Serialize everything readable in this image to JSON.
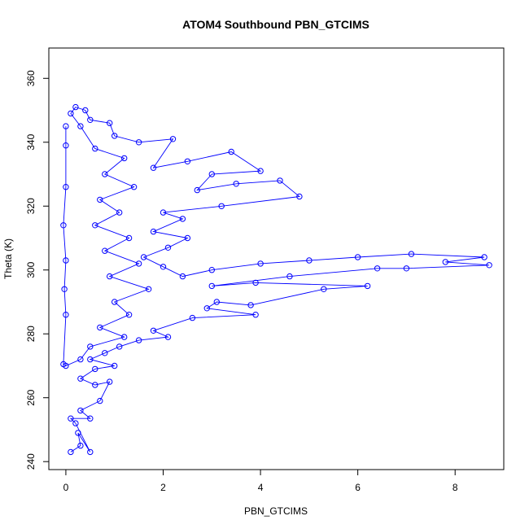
{
  "chart_data": {
    "type": "scatter",
    "title": "ATOM4 Southbound PBN_GTCIMS",
    "xlabel": "PBN_GTCIMS",
    "ylabel": "Theta (K)",
    "xlim": [
      -0.35,
      9.0
    ],
    "ylim": [
      237.5,
      369.5
    ],
    "xticks": [
      0,
      2,
      4,
      6,
      8
    ],
    "yticks": [
      240,
      260,
      280,
      300,
      320,
      340,
      360
    ],
    "grid": false,
    "color": "#0000ff",
    "marker": "open-circle",
    "connected": true,
    "series": [
      {
        "points": [
          [
            0.1,
            243
          ],
          [
            0.3,
            245
          ],
          [
            0.25,
            249
          ],
          [
            0.5,
            243
          ],
          [
            0.2,
            252
          ],
          [
            0.1,
            253.5
          ],
          [
            0.5,
            253.5
          ],
          [
            0.3,
            256
          ],
          [
            0.7,
            259
          ],
          [
            0.9,
            265
          ],
          [
            0.6,
            264
          ],
          [
            0.3,
            266
          ],
          [
            0.6,
            269
          ],
          [
            1.0,
            270
          ],
          [
            0.5,
            272
          ],
          [
            0.8,
            274
          ],
          [
            1.1,
            276
          ],
          [
            1.5,
            278
          ],
          [
            2.1,
            279
          ],
          [
            1.8,
            281
          ],
          [
            2.6,
            285
          ],
          [
            3.9,
            286
          ],
          [
            2.9,
            288
          ],
          [
            3.1,
            290
          ],
          [
            3.8,
            289
          ],
          [
            5.3,
            294
          ],
          [
            6.2,
            295
          ],
          [
            3.9,
            296
          ],
          [
            3.0,
            295
          ],
          [
            4.6,
            298
          ],
          [
            6.4,
            300.5
          ],
          [
            7.0,
            300.5
          ],
          [
            8.7,
            301.5
          ],
          [
            7.8,
            302.5
          ],
          [
            8.6,
            304
          ],
          [
            7.1,
            305
          ],
          [
            6.0,
            304
          ],
          [
            5.0,
            303
          ],
          [
            4.0,
            302
          ],
          [
            3.0,
            300
          ],
          [
            2.4,
            298
          ],
          [
            2.0,
            301
          ],
          [
            1.6,
            304
          ],
          [
            2.1,
            307
          ],
          [
            2.5,
            310
          ],
          [
            1.8,
            312
          ],
          [
            2.4,
            316
          ],
          [
            2.0,
            318
          ],
          [
            3.2,
            320
          ],
          [
            4.8,
            323
          ],
          [
            4.4,
            328
          ],
          [
            3.5,
            327
          ],
          [
            2.7,
            325
          ],
          [
            3.0,
            330
          ],
          [
            4.0,
            331
          ],
          [
            3.4,
            337
          ],
          [
            2.5,
            334
          ],
          [
            1.8,
            332
          ],
          [
            2.2,
            341
          ],
          [
            1.5,
            340
          ],
          [
            1.0,
            342
          ],
          [
            0.9,
            346
          ],
          [
            0.5,
            347
          ],
          [
            0.4,
            350
          ],
          [
            0.2,
            351
          ],
          [
            0.1,
            349
          ],
          [
            0.3,
            345
          ],
          [
            0.6,
            338
          ],
          [
            1.2,
            335
          ],
          [
            0.8,
            330
          ],
          [
            1.4,
            326
          ],
          [
            0.7,
            322
          ],
          [
            1.1,
            318
          ],
          [
            0.6,
            314
          ],
          [
            1.3,
            310
          ],
          [
            0.8,
            306
          ],
          [
            1.5,
            302
          ],
          [
            0.9,
            298
          ],
          [
            1.7,
            294
          ],
          [
            1.0,
            290
          ],
          [
            1.3,
            286
          ],
          [
            0.7,
            282
          ],
          [
            1.2,
            279
          ],
          [
            0.5,
            276
          ],
          [
            0.3,
            272
          ],
          [
            0.0,
            270
          ],
          [
            -0.05,
            270.5
          ],
          [
            0.0,
            286
          ],
          [
            -0.03,
            294
          ],
          [
            0.0,
            303
          ],
          [
            -0.05,
            314
          ],
          [
            0.0,
            326
          ],
          [
            0.0,
            339
          ],
          [
            0.0,
            345
          ]
        ]
      }
    ]
  }
}
